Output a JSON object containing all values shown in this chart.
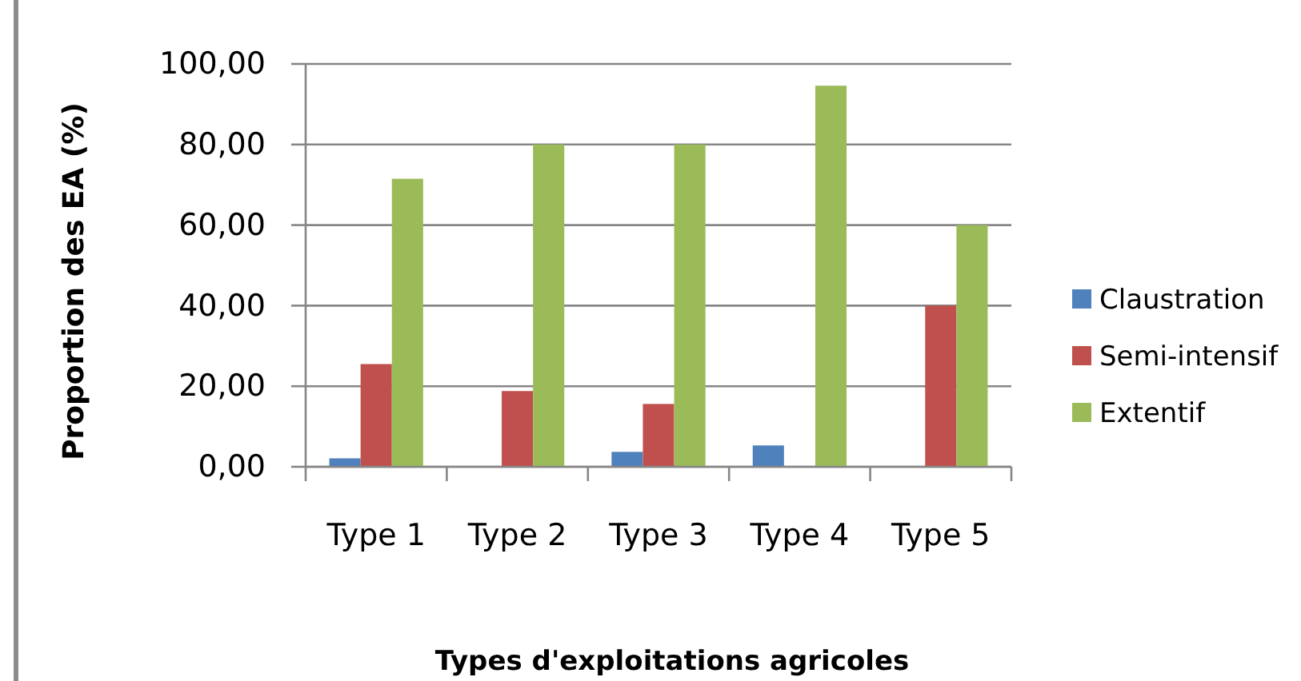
{
  "chart_data": {
    "type": "bar",
    "xlabel": "Types d'exploitations agricoles",
    "ylabel": "Proportion des EA (%)",
    "categories": [
      "Type 1",
      "Type 2",
      "Type 3",
      "Type 4",
      "Type 5"
    ],
    "series": [
      {
        "name": "Claustration",
        "color": "#4f81bd",
        "values": [
          2.1,
          0,
          3.7,
          5.3,
          0
        ]
      },
      {
        "name": "Semi-intensif",
        "color": "#c0504d",
        "values": [
          25.5,
          18.8,
          15.6,
          0,
          40
        ]
      },
      {
        "name": "Extentif",
        "color": "#9bbb59",
        "values": [
          71.5,
          80,
          80,
          94.6,
          60
        ]
      }
    ],
    "ylim": [
      0,
      100
    ],
    "yticks": [
      {
        "value": 0,
        "label": "0,00"
      },
      {
        "value": 20,
        "label": "20,00"
      },
      {
        "value": 40,
        "label": "40,00"
      },
      {
        "value": 60,
        "label": "60,00"
      },
      {
        "value": 80,
        "label": "80,00"
      },
      {
        "value": 100,
        "label": "100,00"
      }
    ],
    "grid": "y",
    "legend": "right"
  }
}
